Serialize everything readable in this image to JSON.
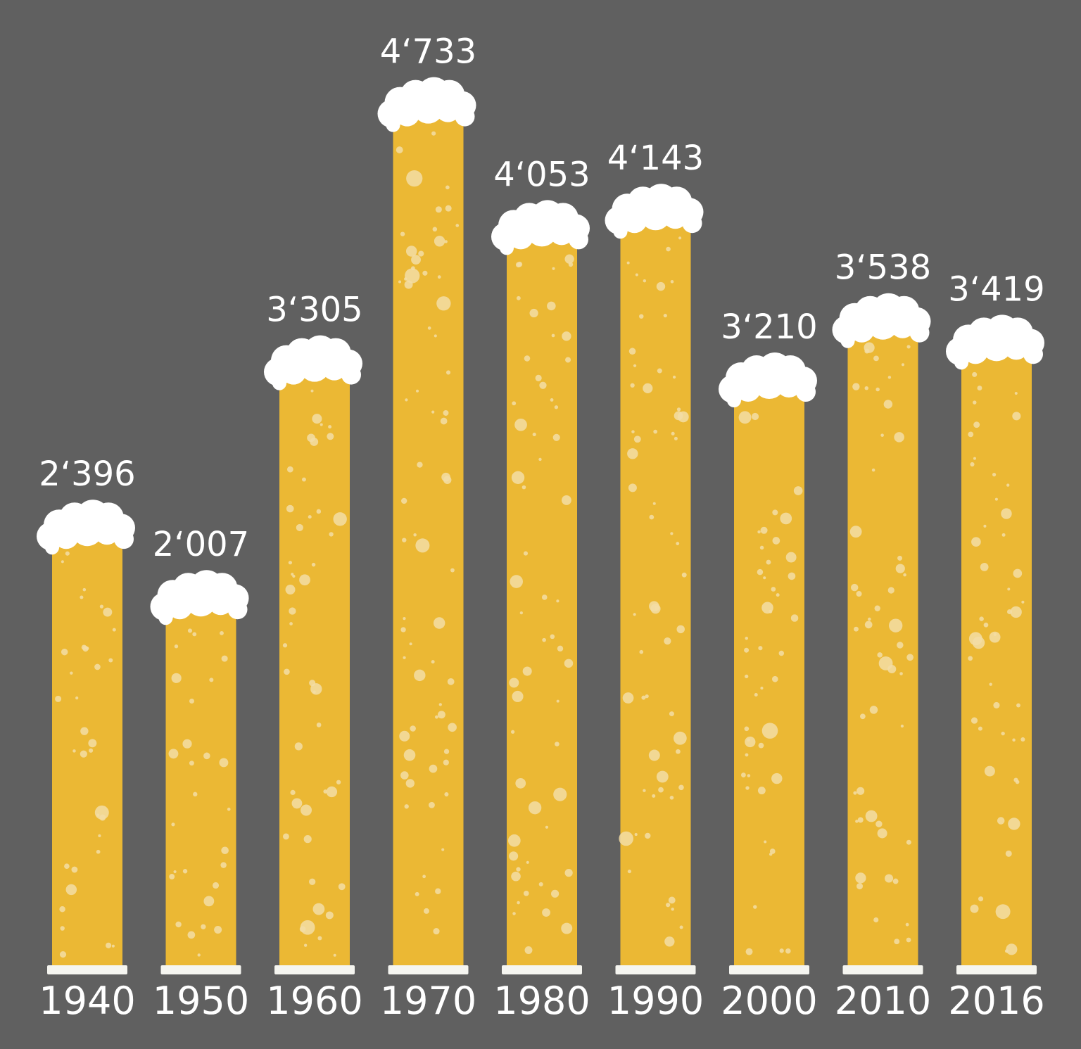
{
  "colors": {
    "background": "#606060",
    "beer": "#EBB834",
    "foam": "#FFFFFF",
    "bubble": "#F3DDA6",
    "base": "#F5F5F0"
  },
  "chart_data": {
    "type": "bar",
    "categories": [
      "1940",
      "1950",
      "1960",
      "1970",
      "1980",
      "1990",
      "2000",
      "2010",
      "2016"
    ],
    "values": [
      2396,
      2007,
      3305,
      4733,
      4053,
      4143,
      3210,
      3538,
      3419
    ],
    "data_labels": [
      "2‘396",
      "2‘007",
      "3‘305",
      "4‘733",
      "4‘053",
      "4‘143",
      "3‘210",
      "3‘538",
      "3‘419"
    ],
    "title": "",
    "xlabel": "",
    "ylabel": "",
    "ylim": [
      0,
      4733
    ],
    "grid": false,
    "legend": "none"
  }
}
